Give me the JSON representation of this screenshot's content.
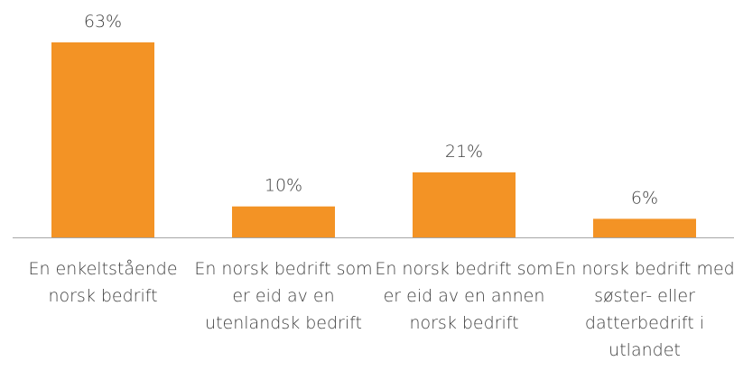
{
  "chart_data": {
    "type": "bar",
    "categories": [
      "En enkeltstående norsk bedrift",
      "En norsk bedrift som er eid av en utenlandsk bedrift",
      "En norsk bedrift som er eid av en annen norsk bedrift",
      "En norsk bedrift med søster- eller datterbedrift i utlandet"
    ],
    "values": [
      63,
      10,
      21,
      6
    ],
    "value_labels": [
      "63%",
      "10%",
      "21%",
      "6%"
    ],
    "color": "#f39325"
  }
}
